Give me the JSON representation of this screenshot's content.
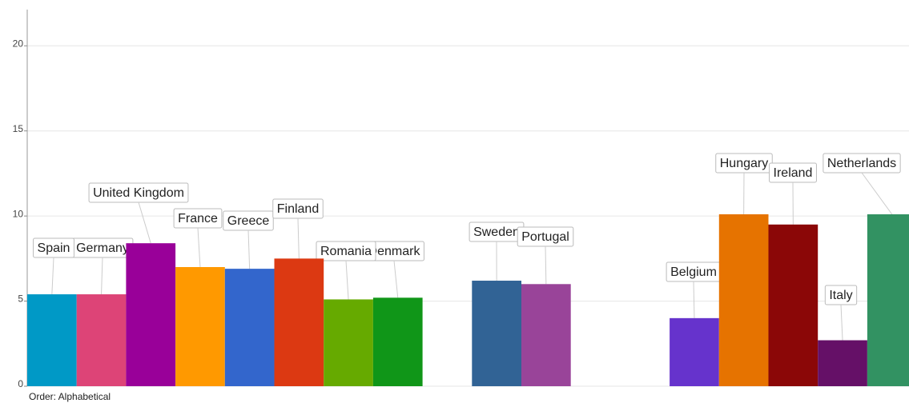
{
  "chart_data": {
    "type": "bar",
    "categories": [
      "Spain",
      "Germany",
      "United Kingdom",
      "France",
      "Greece",
      "Finland",
      "Romania",
      "Denmark",
      null,
      "Sweden",
      "Portugal",
      null,
      null,
      "Belgium",
      "Hungary",
      "Ireland",
      "Italy",
      "Netherlands"
    ],
    "values": [
      5.4,
      5.4,
      8.4,
      7.0,
      6.9,
      7.5,
      5.1,
      5.2,
      null,
      6.2,
      6.0,
      null,
      null,
      4.0,
      10.1,
      9.5,
      2.7,
      10.1
    ],
    "colors": [
      "#0099c6",
      "#dd4477",
      "#990099",
      "#ff9900",
      "#3366cc",
      "#dc3912",
      "#66aa00",
      "#109618",
      null,
      "#316395",
      "#994499",
      null,
      null,
      "#6633cc",
      "#e67300",
      "#8b0707",
      "#651067",
      "#329262"
    ],
    "ylim": [
      0,
      21
    ],
    "yticks": [
      0,
      5,
      10,
      15,
      20
    ],
    "grid": true,
    "footer": "Order: Alphabetical"
  }
}
